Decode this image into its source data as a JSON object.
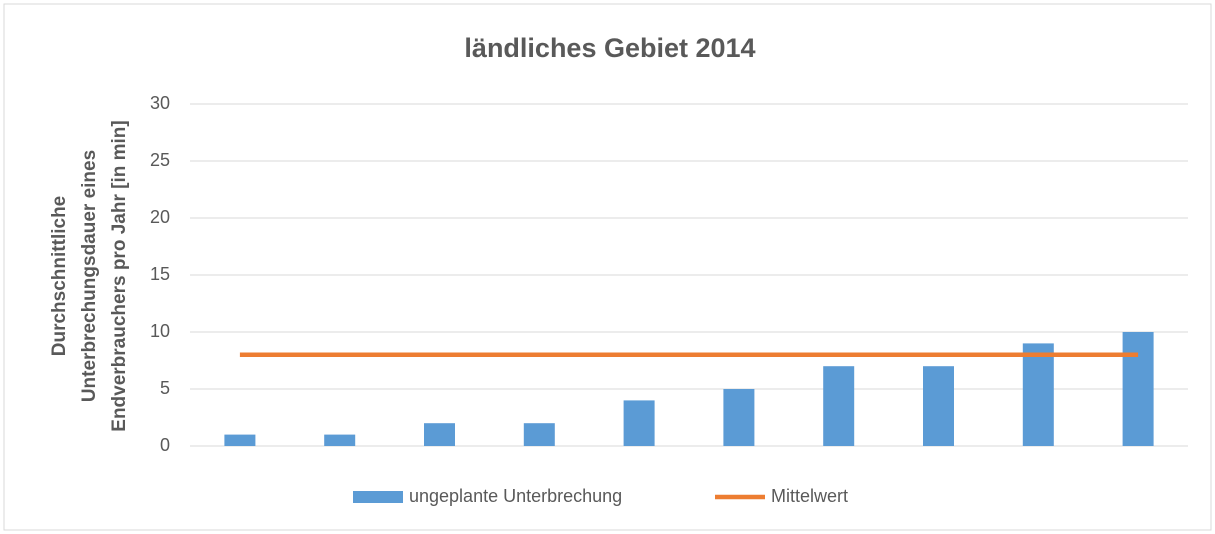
{
  "chart_data": {
    "type": "bar",
    "title": "ländliches Gebiet 2014",
    "ylabel": [
      "Durchschnittliche",
      "Unterbrechungsdauer eines",
      "Endverbrauchers pro Jahr [in min]"
    ],
    "categories": [
      null,
      null,
      null,
      null,
      null,
      null,
      null,
      null,
      null,
      null
    ],
    "series": [
      {
        "name": "ungeplante Unterbrechung",
        "type": "bar",
        "color": "#5b9bd5",
        "values": [
          1,
          1,
          2,
          2,
          4,
          5,
          7,
          7,
          9,
          10
        ]
      },
      {
        "name": "Mittelwert",
        "type": "line",
        "color": "#ed7d31",
        "values": [
          8,
          8,
          8,
          8,
          8,
          8,
          8,
          8,
          8,
          8
        ]
      }
    ],
    "ylim": [
      0,
      30
    ],
    "yticks": [
      0,
      5,
      10,
      15,
      20,
      25,
      30
    ],
    "grid": true,
    "legend": "bottom"
  }
}
